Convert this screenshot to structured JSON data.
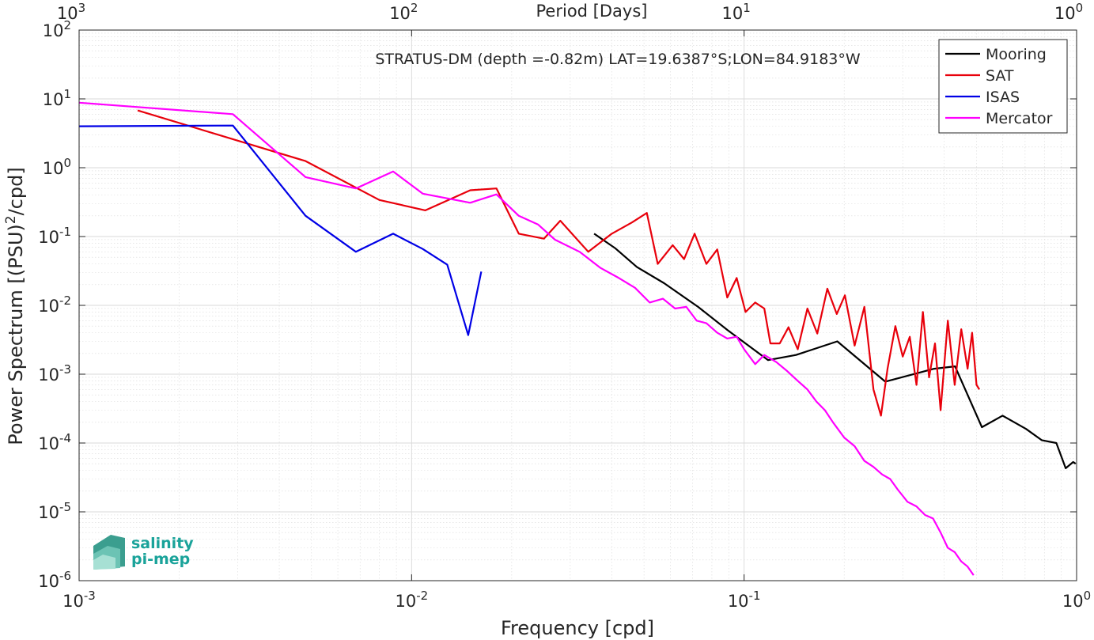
{
  "chart_data": {
    "type": "line",
    "title": "STRATUS-DM (depth =-0.82m) LAT=19.6387°S;LON=84.9183°W",
    "xlabel": "Frequency [cpd]",
    "ylabel": "Power Spectrum [(PSU)²/cpd]",
    "top_xlabel": "Period [Days]",
    "x_scale": "log",
    "y_scale": "log",
    "xlim": [
      0.001,
      1
    ],
    "ylim": [
      1e-06,
      100
    ],
    "x_ticks": [
      {
        "value": 0.001,
        "base": "10",
        "exp": "-3"
      },
      {
        "value": 0.01,
        "base": "10",
        "exp": "-2"
      },
      {
        "value": 0.1,
        "base": "10",
        "exp": "-1"
      },
      {
        "value": 1,
        "base": "10",
        "exp": "0"
      }
    ],
    "top_ticks": [
      {
        "value": 0.001,
        "base": "10",
        "exp": "3"
      },
      {
        "value": 0.01,
        "base": "10",
        "exp": "2"
      },
      {
        "value": 0.1,
        "base": "10",
        "exp": "1"
      },
      {
        "value": 1,
        "base": "10",
        "exp": "0"
      }
    ],
    "y_ticks": [
      {
        "value": 100,
        "base": "10",
        "exp": "2"
      },
      {
        "value": 10,
        "base": "10",
        "exp": "1"
      },
      {
        "value": 1,
        "base": "10",
        "exp": "0"
      },
      {
        "value": 0.1,
        "base": "10",
        "exp": "-1"
      },
      {
        "value": 0.01,
        "base": "10",
        "exp": "-2"
      },
      {
        "value": 0.001,
        "base": "10",
        "exp": "-3"
      },
      {
        "value": 0.0001,
        "base": "10",
        "exp": "-4"
      },
      {
        "value": 1e-05,
        "base": "10",
        "exp": "-5"
      },
      {
        "value": 1e-06,
        "base": "10",
        "exp": "-6"
      }
    ],
    "grid": true,
    "minor_grid": true,
    "legend_position": "top-right",
    "series": [
      {
        "name": "Mooring",
        "color": "#000000",
        "x": [
          0.0354,
          0.0409,
          0.0476,
          0.0575,
          0.0727,
          0.089,
          0.1181,
          0.1433,
          0.1907,
          0.2658,
          0.3728,
          0.4308,
          0.5191,
          0.5988,
          0.7045,
          0.7854,
          0.8692,
          0.9271,
          0.9765,
          0.9932
        ],
        "y": [
          0.11,
          0.068,
          0.036,
          0.021,
          0.0095,
          0.0044,
          0.0016,
          0.0019,
          0.003,
          0.00078,
          0.0012,
          0.0013,
          0.00017,
          0.00025,
          0.00016,
          0.00011,
          0.0001,
          4.3e-05,
          5.3e-05,
          5e-05
        ]
      },
      {
        "name": "SAT",
        "color": "#e8000b",
        "x": [
          0.0015,
          0.0029,
          0.0048,
          0.008,
          0.011,
          0.015,
          0.018,
          0.021,
          0.025,
          0.028,
          0.034,
          0.04,
          0.046,
          0.051,
          0.055,
          0.061,
          0.066,
          0.071,
          0.077,
          0.083,
          0.089,
          0.095,
          0.101,
          0.108,
          0.115,
          0.12,
          0.128,
          0.136,
          0.145,
          0.155,
          0.166,
          0.178,
          0.19,
          0.201,
          0.215,
          0.23,
          0.245,
          0.258,
          0.27,
          0.285,
          0.3,
          0.315,
          0.33,
          0.345,
          0.36,
          0.375,
          0.39,
          0.41,
          0.43,
          0.45,
          0.47,
          0.485,
          0.5,
          0.51
        ],
        "y": [
          6.8,
          2.6,
          1.25,
          0.34,
          0.24,
          0.47,
          0.5,
          0.11,
          0.093,
          0.17,
          0.06,
          0.11,
          0.16,
          0.22,
          0.04,
          0.075,
          0.047,
          0.11,
          0.04,
          0.065,
          0.013,
          0.025,
          0.008,
          0.011,
          0.009,
          0.0028,
          0.0028,
          0.0048,
          0.0023,
          0.009,
          0.0039,
          0.0175,
          0.0075,
          0.014,
          0.0026,
          0.0095,
          0.0006,
          0.00025,
          0.0012,
          0.005,
          0.0018,
          0.0035,
          0.0007,
          0.008,
          0.0009,
          0.0028,
          0.0003,
          0.006,
          0.0007,
          0.0045,
          0.0012,
          0.004,
          0.0007,
          0.0006
        ]
      },
      {
        "name": "ISAS",
        "color": "#0000e6",
        "x": [
          0.001,
          0.0029,
          0.0048,
          0.0068,
          0.0088,
          0.0108,
          0.0128,
          0.0148,
          0.0162
        ],
        "y": [
          4.0,
          4.1,
          0.2,
          0.06,
          0.11,
          0.066,
          0.039,
          0.0037,
          0.031
        ]
      },
      {
        "name": "Mercator",
        "color": "#ff00ff",
        "x": [
          0.001,
          0.0029,
          0.0048,
          0.0068,
          0.0088,
          0.0108,
          0.015,
          0.018,
          0.021,
          0.024,
          0.027,
          0.032,
          0.037,
          0.042,
          0.047,
          0.052,
          0.057,
          0.062,
          0.067,
          0.072,
          0.077,
          0.083,
          0.089,
          0.095,
          0.1,
          0.108,
          0.115,
          0.125,
          0.135,
          0.145,
          0.155,
          0.165,
          0.175,
          0.185,
          0.2,
          0.215,
          0.23,
          0.245,
          0.26,
          0.275,
          0.29,
          0.31,
          0.33,
          0.35,
          0.37,
          0.39,
          0.41,
          0.43,
          0.45,
          0.47,
          0.49
        ],
        "y": [
          8.8,
          6.0,
          0.73,
          0.5,
          0.88,
          0.42,
          0.31,
          0.41,
          0.2,
          0.15,
          0.09,
          0.06,
          0.035,
          0.025,
          0.018,
          0.011,
          0.0125,
          0.009,
          0.0095,
          0.006,
          0.0055,
          0.004,
          0.0033,
          0.0035,
          0.0023,
          0.0014,
          0.0019,
          0.0015,
          0.0011,
          0.0008,
          0.0006,
          0.0004,
          0.0003,
          0.0002,
          0.00012,
          9e-05,
          5.5e-05,
          4.5e-05,
          3.5e-05,
          3e-05,
          2.1e-05,
          1.4e-05,
          1.2e-05,
          9e-06,
          8e-06,
          5e-06,
          3e-06,
          2.6e-06,
          1.9e-06,
          1.6e-06,
          1.2e-06
        ]
      }
    ]
  },
  "logo": {
    "line1": "salinity",
    "line2": "pi-mep"
  },
  "colors": {
    "axis": "#262626",
    "grid": "#d9d9d9",
    "logo_text": "#1aa39a"
  }
}
